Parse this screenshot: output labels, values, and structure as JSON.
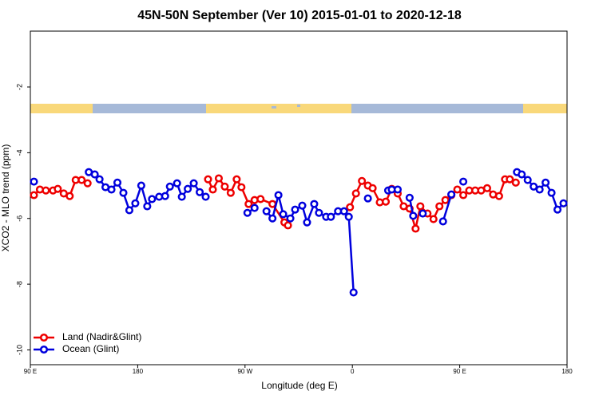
{
  "chart_data": {
    "type": "line",
    "title": "45N-50N September (Ver 10)   2015-01-01 to 2020-12-18",
    "xlabel": "Longitude (deg E)",
    "ylabel": "XCO2 - MLO trend (ppm)",
    "xlim": [
      90,
      540
    ],
    "ylim": [
      -10.45,
      -0.3
    ],
    "xticks": [
      {
        "value": 90,
        "label": "90 E"
      },
      {
        "value": 180,
        "label": "180"
      },
      {
        "value": 270,
        "label": "90 W"
      },
      {
        "value": 360,
        "label": "0"
      },
      {
        "value": 450,
        "label": "90 E"
      },
      {
        "value": 540,
        "label": "180"
      }
    ],
    "yticks": [
      -2,
      -4,
      -6,
      -8,
      -10
    ],
    "legend": "bottom-left",
    "series": [
      {
        "name": "Land (Nadir&Glint)",
        "color": "#ee0000",
        "x": [
          93,
          98,
          103,
          109,
          113,
          118,
          123,
          128,
          133,
          138,
          null,
          239,
          243,
          248,
          253,
          258,
          263,
          267,
          273,
          278,
          283,
          293,
          303,
          306,
          null,
          358,
          363,
          368,
          373,
          377,
          383,
          388,
          393,
          398,
          403,
          408,
          413,
          417,
          423,
          428,
          433,
          438,
          443,
          448,
          453,
          458,
          463,
          468,
          473,
          478,
          483,
          488,
          492,
          497
        ],
        "values": [
          -5.29,
          -5.12,
          -5.15,
          -5.15,
          -5.1,
          -5.24,
          -5.32,
          -4.83,
          -4.83,
          -4.93,
          null,
          -4.81,
          -5.12,
          -4.78,
          -5.03,
          -5.22,
          -4.81,
          -5.05,
          -5.56,
          -5.44,
          -5.41,
          -5.56,
          -6.12,
          -6.21,
          null,
          -5.66,
          -5.24,
          -4.86,
          -5.0,
          -5.08,
          -5.51,
          -5.49,
          -5.1,
          -5.24,
          -5.63,
          -5.7,
          -6.31,
          -5.63,
          -5.85,
          -6.02,
          -5.63,
          -5.44,
          -5.29,
          -5.12,
          -5.29,
          -5.15,
          -5.15,
          -5.15,
          -5.08,
          -5.27,
          -5.32,
          -4.81,
          -4.81,
          -4.91
        ]
      },
      {
        "name": "Ocean (Glint)",
        "color": "#0000dd",
        "x": [
          93,
          null,
          139,
          144,
          148,
          153,
          158,
          163,
          168,
          173,
          178,
          183,
          188,
          192,
          198,
          203,
          207,
          213,
          217,
          222,
          227,
          232,
          237,
          null,
          272,
          278,
          null,
          288,
          293,
          298,
          302,
          308,
          312,
          318,
          322,
          328,
          332,
          338,
          342,
          348,
          353,
          357,
          361,
          null,
          373,
          null,
          390,
          393,
          398,
          null,
          408,
          411,
          null,
          419,
          null,
          436,
          443,
          null,
          453,
          null,
          498,
          502,
          507,
          512,
          517,
          522,
          527,
          532,
          537
        ],
        "values": [
          -4.88,
          null,
          -4.59,
          -4.66,
          -4.81,
          -5.05,
          -5.12,
          -4.91,
          -5.22,
          -5.75,
          -5.54,
          -5.0,
          -5.63,
          -5.41,
          -5.34,
          -5.32,
          -5.03,
          -4.93,
          -5.34,
          -5.1,
          -4.93,
          -5.2,
          -5.34,
          null,
          -5.83,
          -5.68,
          null,
          -5.78,
          -6.0,
          -5.29,
          -5.87,
          -6.0,
          -5.73,
          -5.61,
          -6.12,
          -5.56,
          -5.83,
          -5.95,
          -5.95,
          -5.78,
          -5.78,
          -5.95,
          -8.25,
          null,
          -5.39,
          null,
          -5.15,
          -5.12,
          -5.12,
          null,
          -5.37,
          -5.92,
          null,
          -5.85,
          null,
          -6.09,
          -5.27,
          null,
          -4.88,
          null,
          -4.59,
          -4.66,
          -4.83,
          -5.03,
          -5.12,
          -4.91,
          -5.22,
          -5.73,
          -5.54
        ]
      }
    ]
  }
}
